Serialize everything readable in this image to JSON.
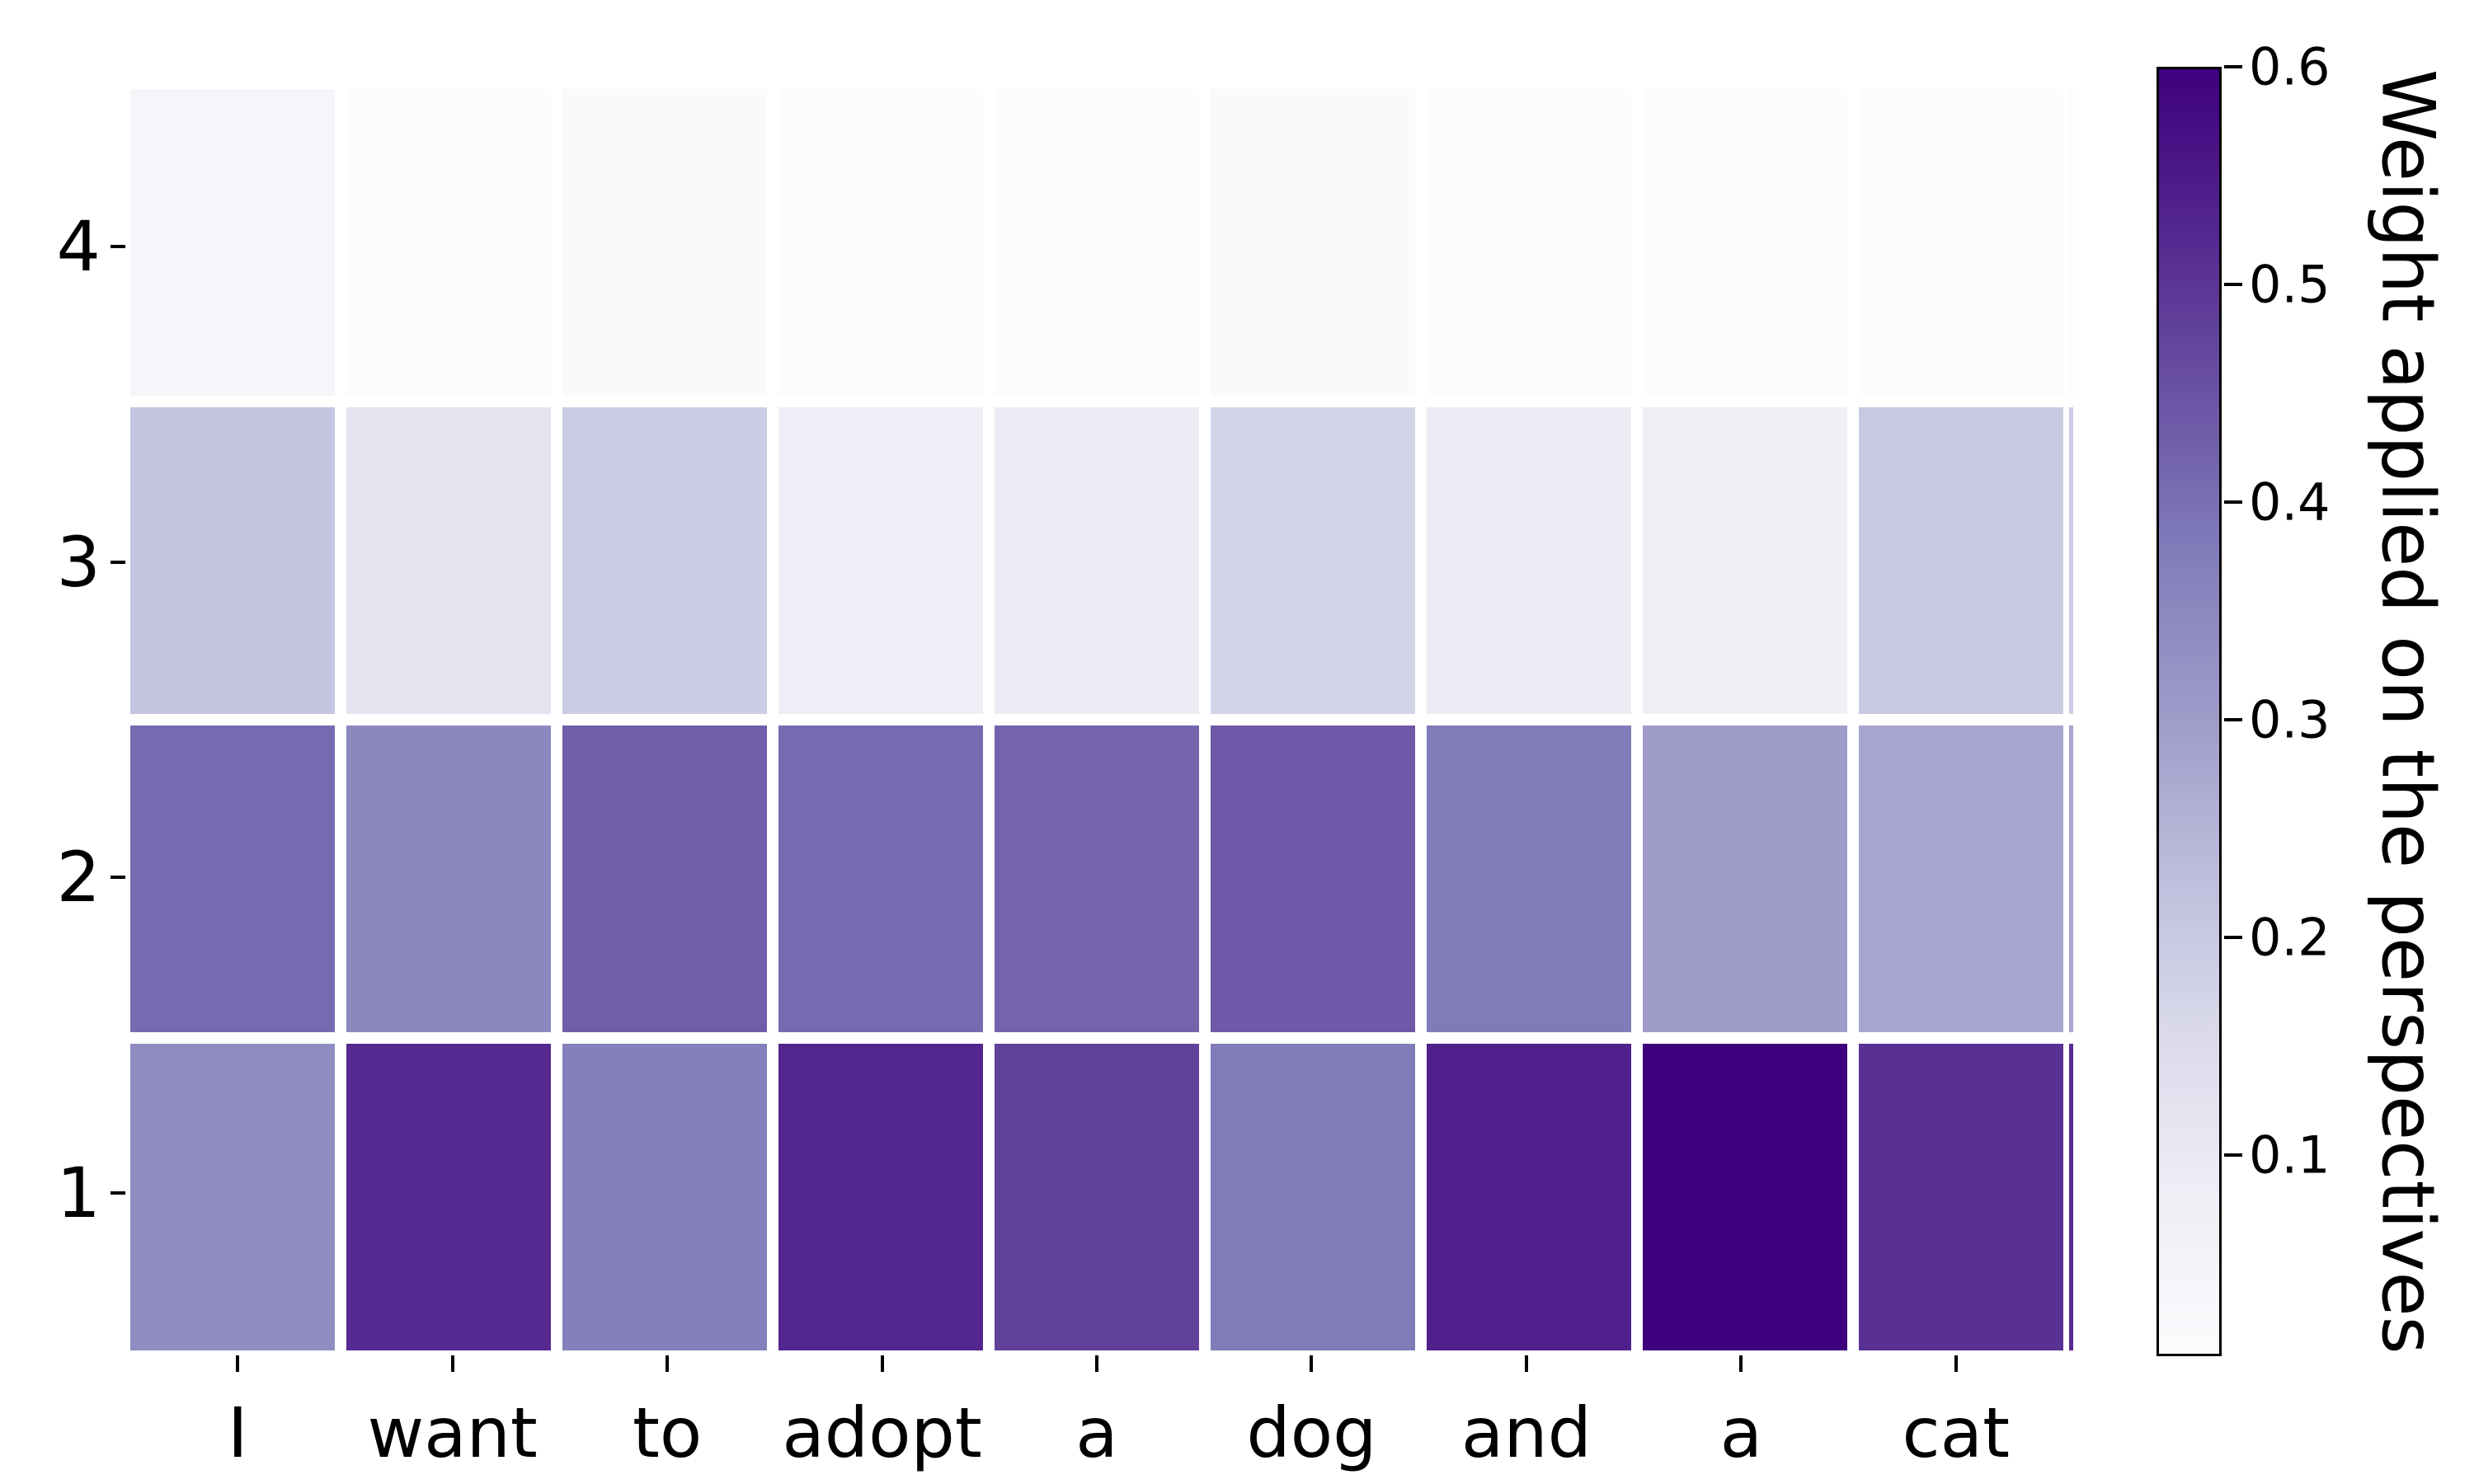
{
  "figure": {
    "background": "#ffffff",
    "text_color": "#000000"
  },
  "chart_data": {
    "type": "heatmap",
    "title": "",
    "xlabel": "",
    "ylabel": "",
    "x_tick_labels": [
      "I",
      "want",
      "to",
      "adopt",
      "a",
      "dog",
      "and",
      "a",
      "cat"
    ],
    "y_tick_labels_top_to_bottom": [
      "4",
      "3",
      "2",
      "1"
    ],
    "rows_top_to_bottom": [
      {
        "label": "4",
        "values": [
          0.04,
          0.01,
          0.02,
          0.01,
          0.01,
          0.02,
          0.01,
          0.01,
          0.01
        ]
      },
      {
        "label": "3",
        "values": [
          0.21,
          0.12,
          0.19,
          0.08,
          0.09,
          0.17,
          0.09,
          0.07,
          0.2
        ]
      },
      {
        "label": "2",
        "values": [
          0.41,
          0.35,
          0.43,
          0.41,
          0.42,
          0.44,
          0.38,
          0.3,
          0.28
        ]
      },
      {
        "label": "1",
        "values": [
          0.34,
          0.52,
          0.37,
          0.53,
          0.48,
          0.38,
          0.54,
          0.6,
          0.51
        ]
      }
    ],
    "clipped_right_column_values_top_to_bottom": [
      0.01,
      0.19,
      0.28,
      0.52
    ],
    "colorbar": {
      "label": "Weight applied on the perspectives",
      "tick_labels": [
        "0.6",
        "0.5",
        "0.4",
        "0.3",
        "0.2",
        "0.1"
      ],
      "tick_values": [
        0.6,
        0.5,
        0.4,
        0.3,
        0.2,
        0.1
      ],
      "vmin": 0.0075,
      "vmax": 0.6,
      "border_color": "#000000"
    },
    "colormap": {
      "name": "Purples",
      "stops_low_to_high": [
        "#fcfbfd",
        "#efedf5",
        "#dadaeb",
        "#bcbddc",
        "#9e9ac8",
        "#807dba",
        "#6a51a3",
        "#54278f",
        "#3f007d"
      ]
    },
    "grid_gap_color": "#ffffff",
    "legend": "none",
    "grid": "off"
  }
}
